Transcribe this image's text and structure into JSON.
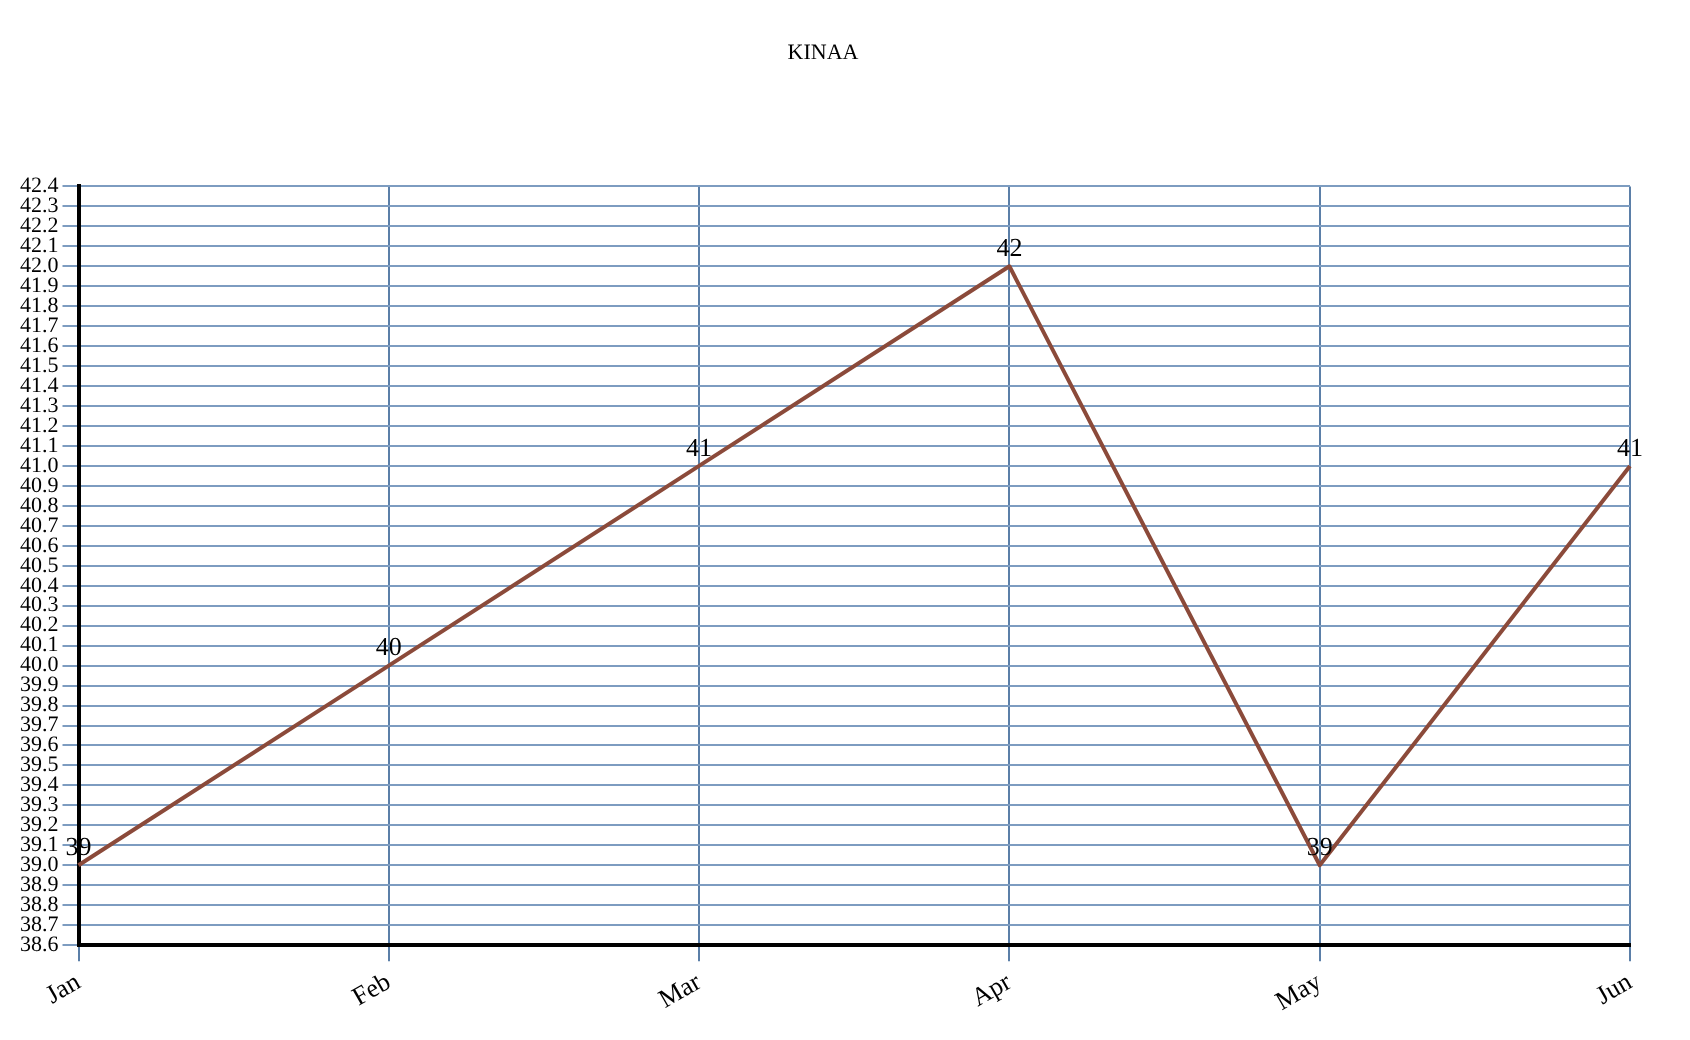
{
  "chart_data": {
    "type": "line",
    "title": "KINAA",
    "categories": [
      "Jan",
      "Feb",
      "Mar",
      "Apr",
      "May",
      "Jun"
    ],
    "series": [
      {
        "color": "#8b4a3a",
        "values": [
          39,
          40,
          41,
          42,
          39,
          41
        ]
      }
    ],
    "ylim": [
      38.6,
      42.4
    ],
    "yticks": [
      38.6,
      38.7,
      38.8,
      38.9,
      {
        "value": 39,
        "label": "39.0"
      },
      39.1,
      39.2,
      39.3,
      39.4,
      39.5,
      39.6,
      39.7,
      39.8,
      39.9,
      {
        "value": 40,
        "label": "40.0"
      },
      40.1,
      40.2,
      40.3,
      40.4,
      40.5,
      40.6,
      40.7,
      40.8,
      40.9,
      {
        "value": 41,
        "label": "41.0"
      },
      41.1,
      41.2,
      41.3,
      41.4,
      41.5,
      41.6,
      41.7,
      41.8,
      41.9,
      {
        "value": 42,
        "label": "42.0"
      },
      42.1,
      42.2,
      42.3,
      42.4
    ],
    "grid": true,
    "data_labels": true,
    "marker": "none",
    "line_style": "solid",
    "legend": false
  }
}
